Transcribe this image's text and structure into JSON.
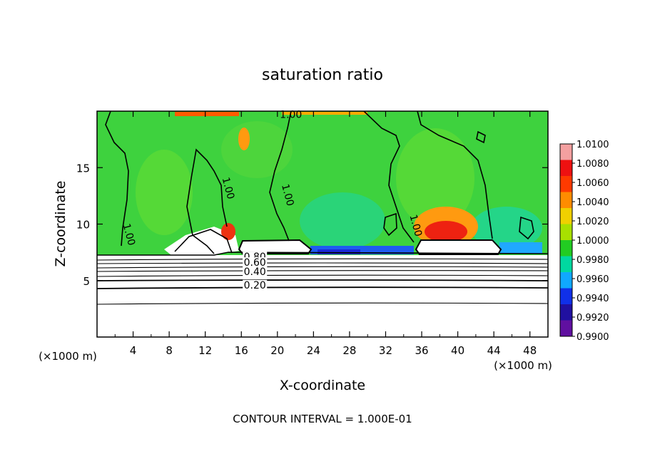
{
  "chart_data": {
    "type": "heatmap",
    "title": "saturation ratio",
    "xlabel": "X-coordinate",
    "ylabel": "Z-coordinate",
    "x_unit_label_left": "(×1000 m)",
    "x_unit_label_right": "(×1000 m)",
    "xlim": [
      0,
      50
    ],
    "ylim": [
      0,
      20
    ],
    "x_ticks": [
      4,
      8,
      12,
      16,
      20,
      24,
      28,
      32,
      36,
      40,
      44,
      48
    ],
    "y_ticks": [
      5,
      10,
      15
    ],
    "colorbar": {
      "min": 0.99,
      "max": 1.01,
      "labels": [
        "1.0100",
        "1.0080",
        "1.0060",
        "1.0040",
        "1.0020",
        "1.0000",
        "0.9980",
        "0.9960",
        "0.9940",
        "0.9920",
        "0.9900"
      ],
      "colors": [
        "#f4a0a0",
        "#ee1111",
        "#ff3a00",
        "#ff8c00",
        "#f0d000",
        "#a8e000",
        "#22cc22",
        "#00d8a0",
        "#10a8ff",
        "#1030e8",
        "#2010a0",
        "#6010a0"
      ]
    },
    "contour_labels": [
      {
        "text": "1.00",
        "x": 21.5,
        "z": 19.4
      },
      {
        "text": "1.00",
        "x": 14.2,
        "z": 13.1
      },
      {
        "text": "1.00",
        "x": 20.8,
        "z": 12.5
      },
      {
        "text": "1.00",
        "x": 3.2,
        "z": 9.0
      },
      {
        "text": "1.00",
        "x": 35.0,
        "z": 9.8
      },
      {
        "text": "0.80",
        "x": 17.5,
        "z": 6.8
      },
      {
        "text": "0.60",
        "x": 17.5,
        "z": 6.3
      },
      {
        "text": "0.40",
        "x": 17.5,
        "z": 5.5
      },
      {
        "text": "0.20",
        "x": 17.5,
        "z": 4.3
      }
    ],
    "contour_interval_text": "CONTOUR INTERVAL = 1.000E-01",
    "grid": false
  }
}
